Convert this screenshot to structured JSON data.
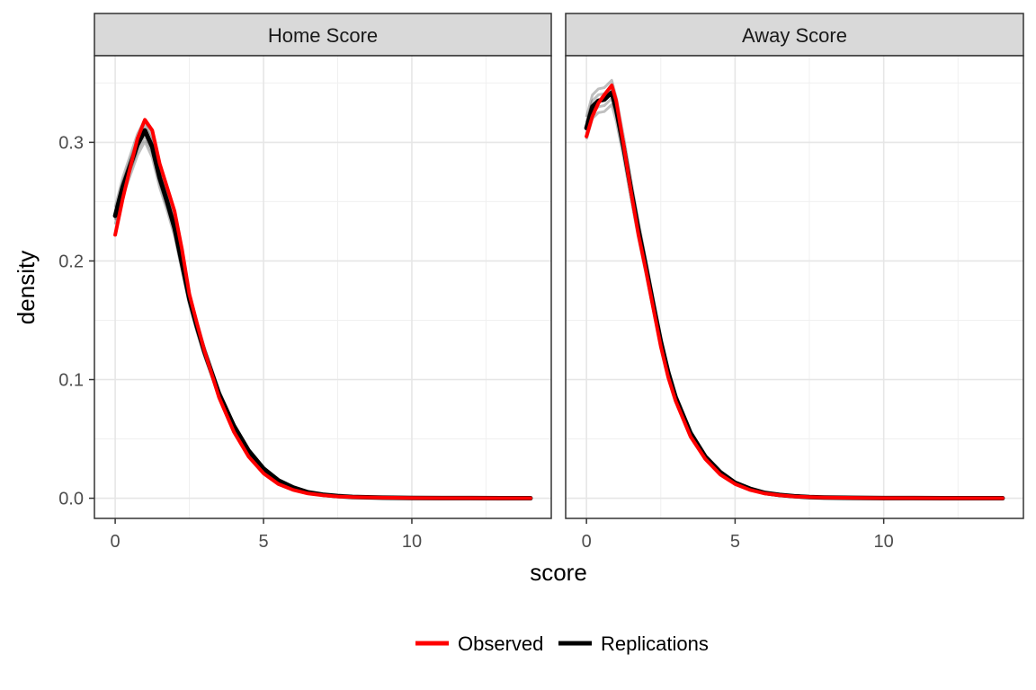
{
  "chart_data": {
    "type": "line",
    "xlabel": "score",
    "ylabel": "density",
    "xlim": [
      -0.7,
      14.7
    ],
    "ylim": [
      -0.017,
      0.373
    ],
    "x_ticks": [
      0,
      5,
      10
    ],
    "y_ticks": [
      0.0,
      0.1,
      0.2,
      0.3
    ],
    "y_tick_labels": [
      "0.0",
      "0.1",
      "0.2",
      "0.3"
    ],
    "grid": true,
    "legend_position": "bottom",
    "legend": [
      {
        "name": "Observed",
        "color": "#ff0000"
      },
      {
        "name": "Replications",
        "color": "#000000"
      }
    ],
    "panels": [
      {
        "title": "Home Score",
        "series": [
          {
            "name": "Observed",
            "x": [
              0,
              0.25,
              0.5,
              0.75,
              1.0,
              1.25,
              1.5,
              1.75,
              2.0,
              2.25,
              2.5,
              2.75,
              3.0,
              3.5,
              4.0,
              4.5,
              5.0,
              5.5,
              6.0,
              6.5,
              7.0,
              7.5,
              8.0,
              9.0,
              10.0,
              11.0,
              12.0,
              13.0,
              14.0
            ],
            "y": [
              0.222,
              0.252,
              0.278,
              0.303,
              0.319,
              0.31,
              0.282,
              0.262,
              0.242,
              0.21,
              0.172,
              0.148,
              0.125,
              0.085,
              0.056,
              0.035,
              0.021,
              0.012,
              0.007,
              0.004,
              0.0025,
              0.0015,
              0.001,
              0.0005,
              0.0002,
              0.0001,
              0.0001,
              0.0,
              0.0
            ]
          },
          {
            "name": "Replications",
            "x": [
              0,
              0.25,
              0.5,
              0.75,
              1.0,
              1.25,
              1.5,
              1.75,
              2.0,
              2.25,
              2.5,
              2.75,
              3.0,
              3.5,
              4.0,
              4.5,
              5.0,
              5.5,
              6.0,
              6.5,
              7.0,
              7.5,
              8.0,
              9.0,
              10.0,
              11.0,
              12.0,
              13.0,
              14.0
            ],
            "y": [
              0.238,
              0.262,
              0.28,
              0.298,
              0.31,
              0.296,
              0.27,
              0.25,
              0.228,
              0.198,
              0.168,
              0.145,
              0.124,
              0.088,
              0.061,
              0.04,
              0.025,
              0.015,
              0.009,
              0.005,
              0.003,
              0.0018,
              0.0011,
              0.0005,
              0.0002,
              0.0001,
              0.0001,
              0.0,
              0.0
            ]
          }
        ]
      },
      {
        "title": "Away Score",
        "series": [
          {
            "name": "Observed",
            "x": [
              0,
              0.2,
              0.4,
              0.6,
              0.85,
              1.0,
              1.25,
              1.5,
              1.75,
              2.0,
              2.25,
              2.5,
              2.75,
              3.0,
              3.5,
              4.0,
              4.5,
              5.0,
              5.5,
              6.0,
              6.5,
              7.0,
              7.5,
              8.0,
              9.0,
              10.0,
              11.0,
              12.0,
              13.0,
              14.0
            ],
            "y": [
              0.305,
              0.322,
              0.333,
              0.34,
              0.348,
              0.335,
              0.298,
              0.258,
              0.222,
              0.192,
              0.16,
              0.128,
              0.102,
              0.082,
              0.052,
              0.033,
              0.02,
              0.012,
              0.007,
              0.004,
              0.0025,
              0.0015,
              0.001,
              0.0006,
              0.0003,
              0.0001,
              0.0001,
              0.0,
              0.0,
              0.0
            ]
          },
          {
            "name": "Replications",
            "x": [
              0,
              0.2,
              0.4,
              0.6,
              0.85,
              1.0,
              1.25,
              1.5,
              1.75,
              2.0,
              2.25,
              2.5,
              2.75,
              3.0,
              3.5,
              4.0,
              4.5,
              5.0,
              5.5,
              6.0,
              6.5,
              7.0,
              7.5,
              8.0,
              9.0,
              10.0,
              11.0,
              12.0,
              13.0,
              14.0
            ],
            "y": [
              0.312,
              0.33,
              0.335,
              0.336,
              0.342,
              0.328,
              0.296,
              0.26,
              0.226,
              0.195,
              0.163,
              0.132,
              0.106,
              0.085,
              0.055,
              0.035,
              0.022,
              0.013,
              0.008,
              0.0045,
              0.0028,
              0.0017,
              0.001,
              0.0006,
              0.0003,
              0.0001,
              0.0001,
              0.0,
              0.0,
              0.0
            ]
          }
        ]
      }
    ]
  }
}
